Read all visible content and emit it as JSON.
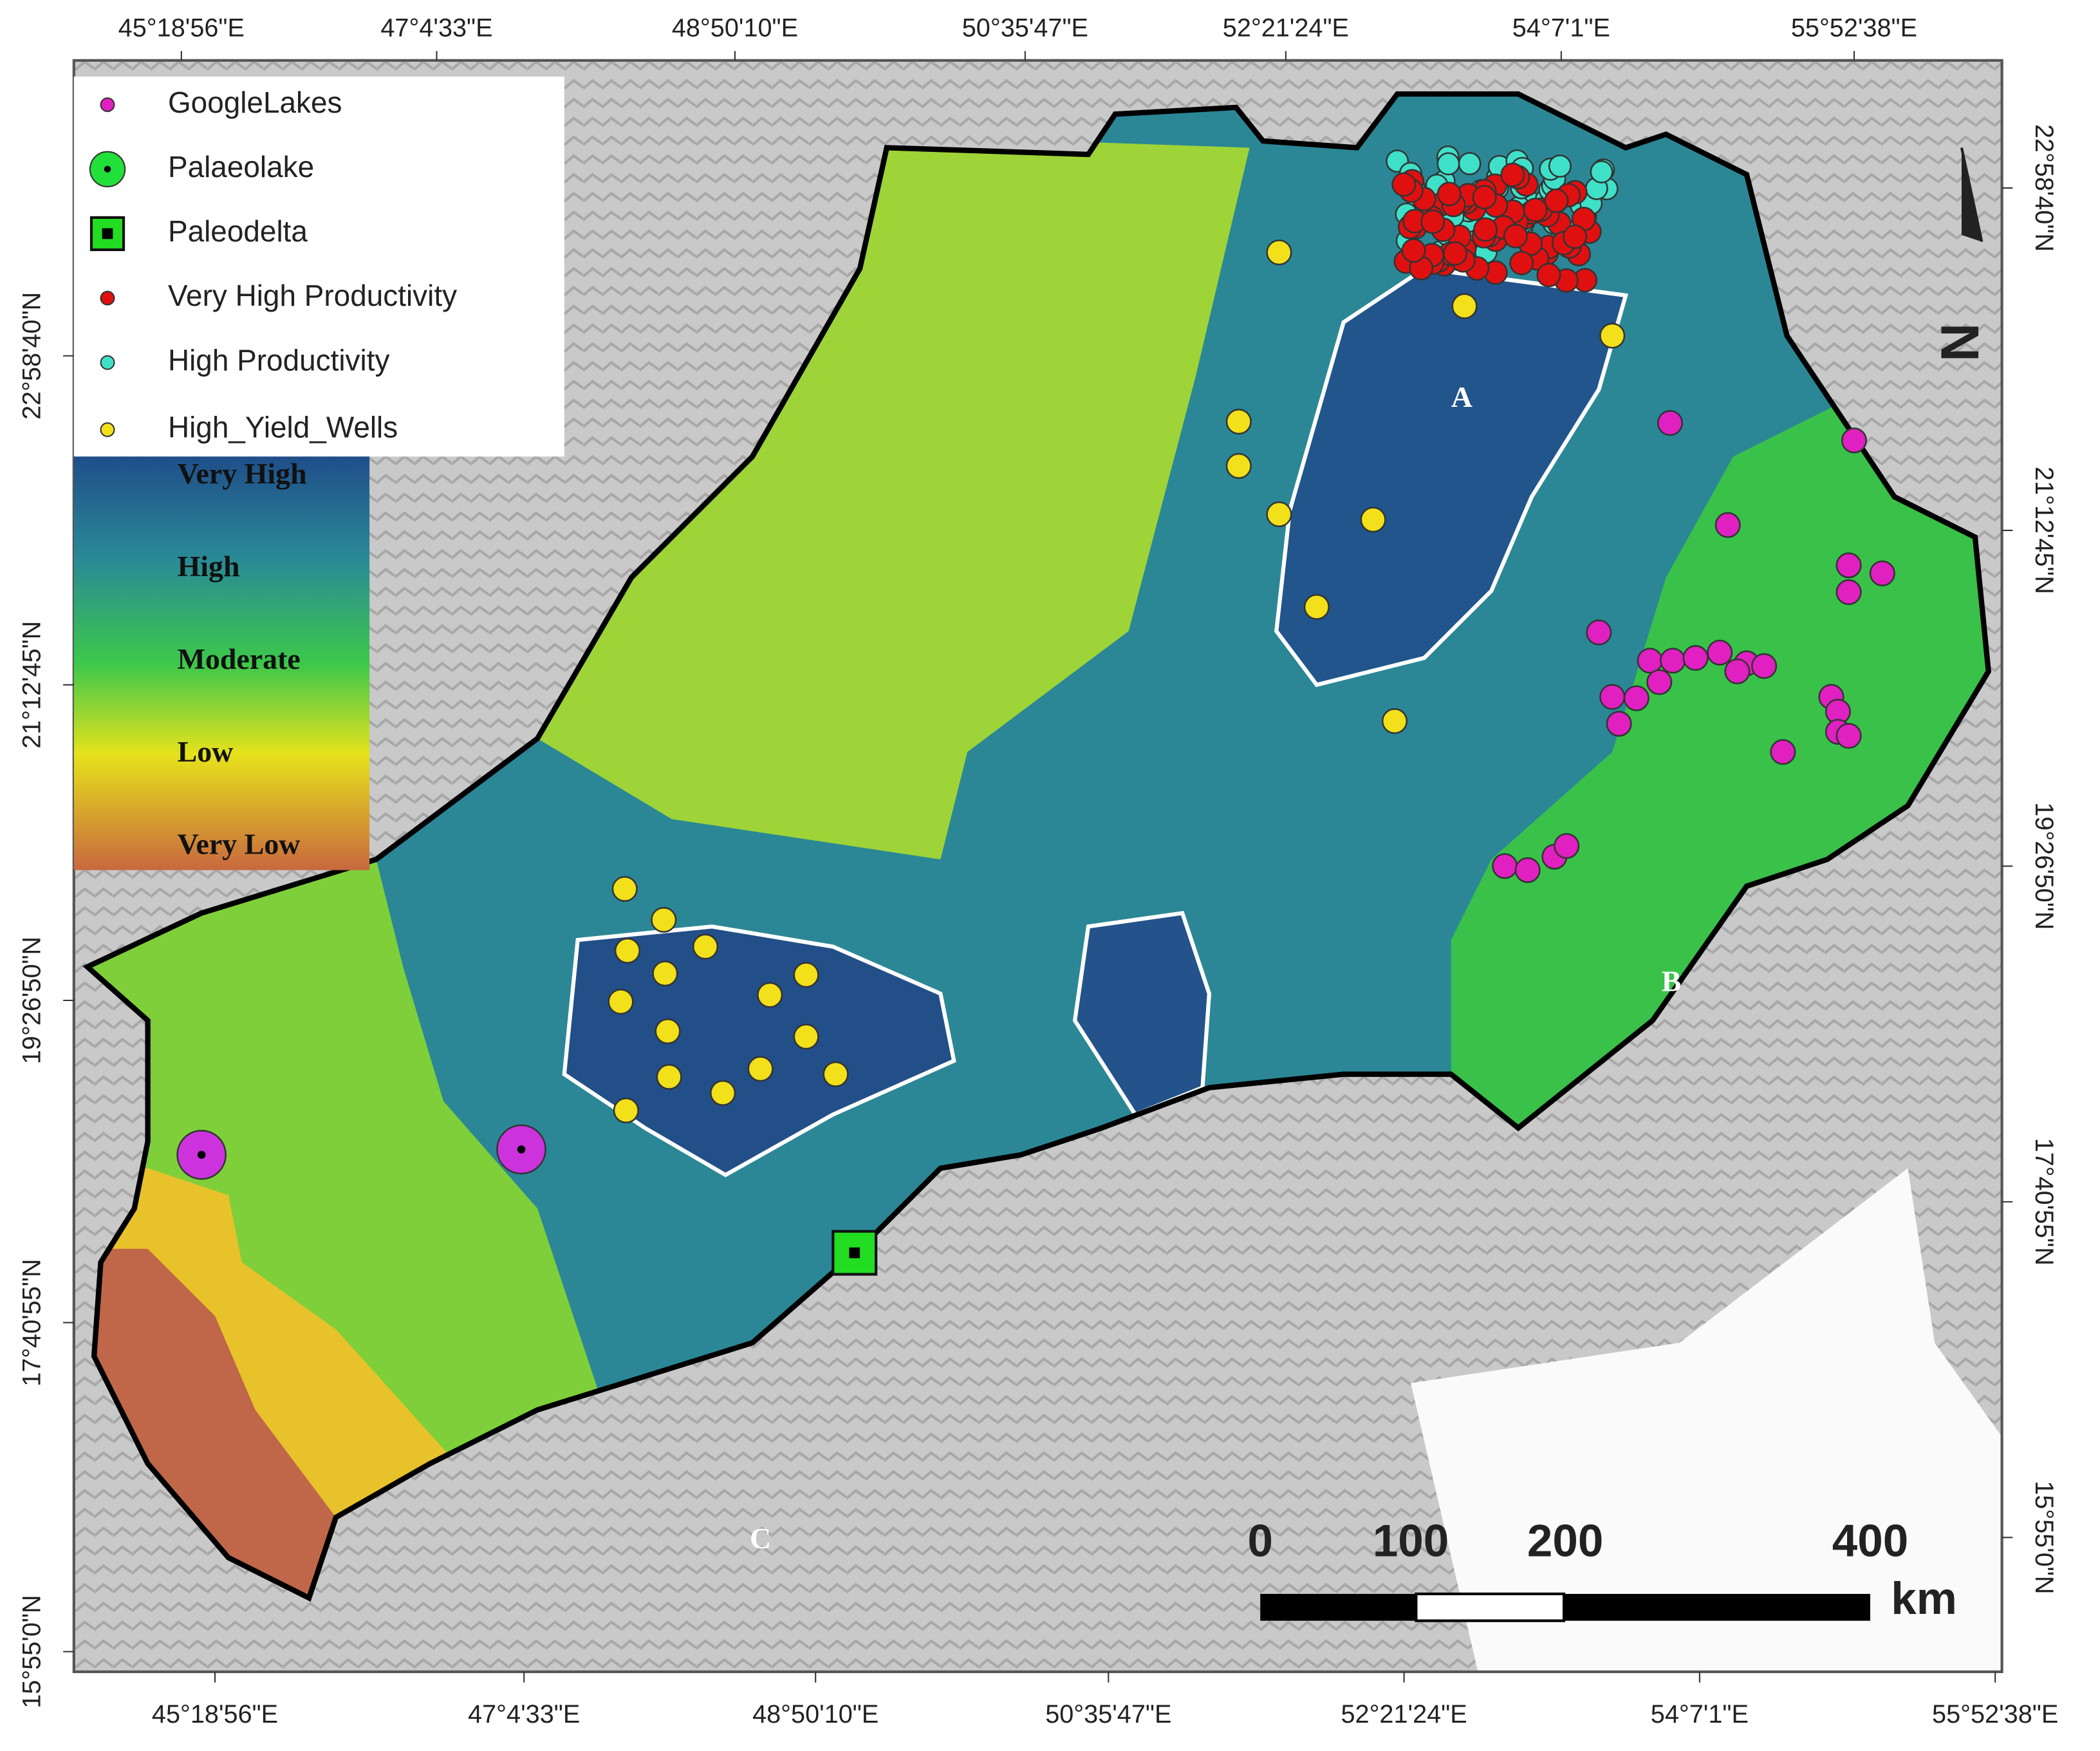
{
  "map": {
    "top_axis_labels": [
      "45°18'56\"E",
      "47°4'33\"E",
      "48°50'10\"E",
      "50°35'47\"E",
      "52°21'24\"E",
      "54°7'1\"E",
      "55°52'38\"E"
    ],
    "bottom_axis_labels": [
      "45°18'56\"E",
      "47°4'33\"E",
      "48°50'10\"E",
      "50°35'47\"E",
      "52°21'24\"E",
      "54°7'1\"E",
      "55°52'38\"E"
    ],
    "left_axis_labels": [
      "22°58'40\"N",
      "21°12'45\"N",
      "19°26'50\"N",
      "17°40'55\"N",
      "15°55'0\"N"
    ],
    "right_axis_labels": [
      "22°58'40\"N",
      "21°12'45\"N",
      "19°26'50\"N",
      "17°40'55\"N",
      "15°55'0\"N"
    ],
    "legend": [
      "GoogleLakes",
      "Palaeolake",
      "Paleodelta",
      "Very High Productivity",
      "High Productivity",
      "High_Yield_Wells"
    ],
    "colorbar_labels": [
      "Very High",
      "High",
      "Moderate",
      "Low",
      "Very Low"
    ],
    "scale_bar": {
      "labels": [
        "0",
        "100",
        "200",
        "400"
      ],
      "unit": "km"
    },
    "region_labels": [
      "A",
      "B",
      "C"
    ],
    "north_label": "N"
  }
}
